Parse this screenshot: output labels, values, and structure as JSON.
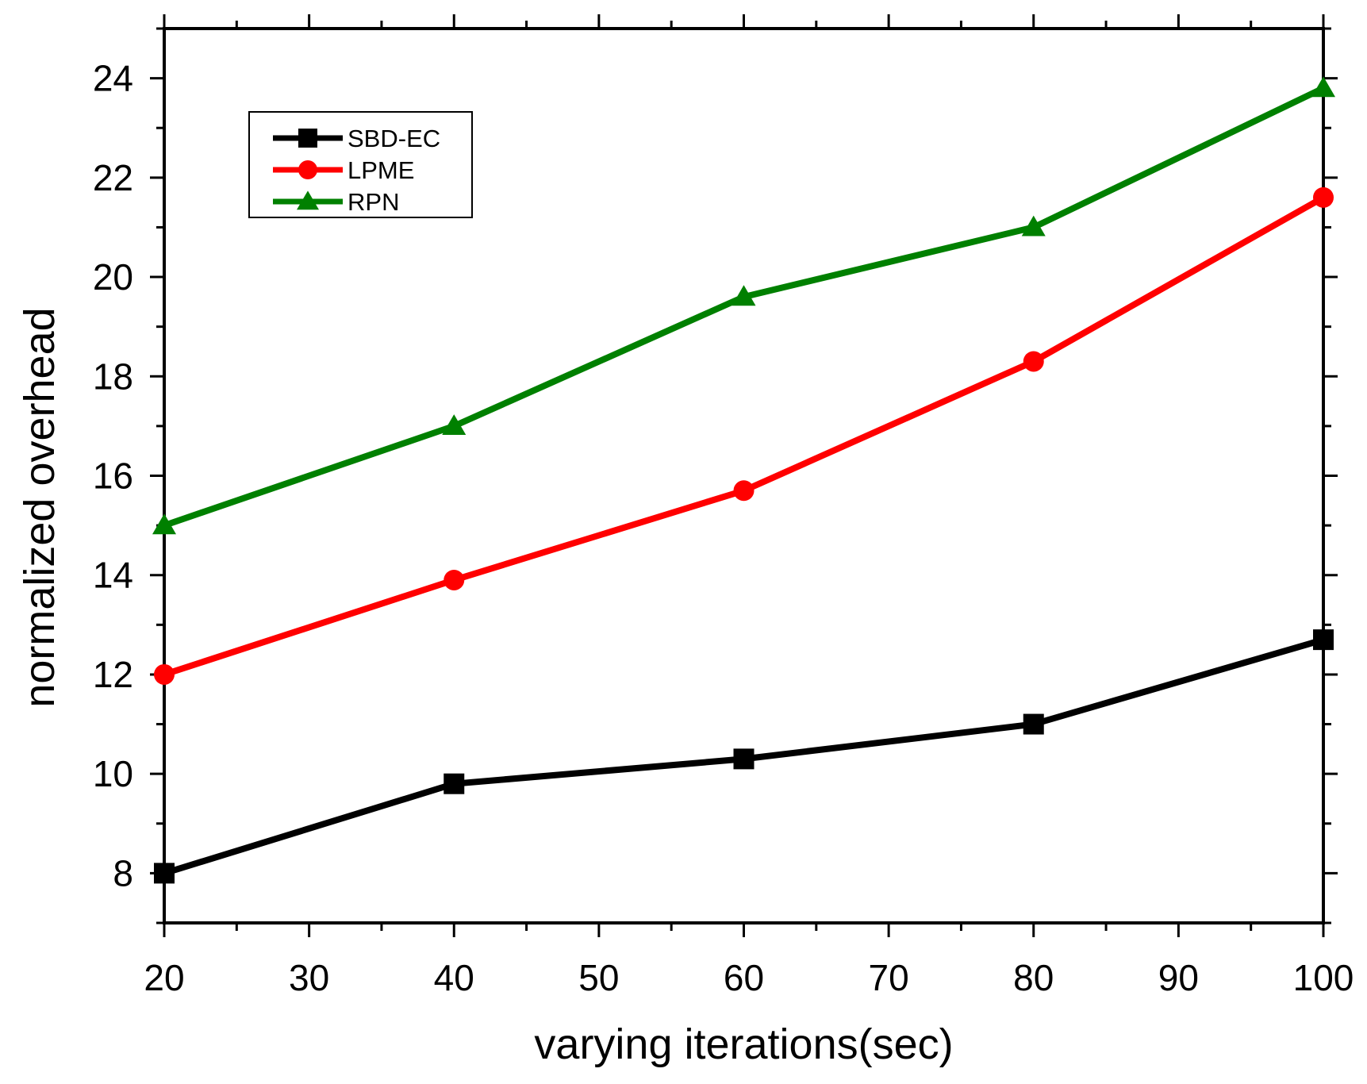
{
  "chart_data": {
    "type": "line",
    "title": "",
    "xlabel": "varying iterations(sec)",
    "ylabel": "normalized overhead",
    "xlim": [
      20,
      100
    ],
    "ylim": [
      7,
      25
    ],
    "x_ticks": [
      20,
      30,
      40,
      50,
      60,
      70,
      80,
      90,
      100
    ],
    "y_ticks": [
      8,
      10,
      12,
      14,
      16,
      18,
      20,
      22,
      24
    ],
    "grid": false,
    "legend_position": "top-left",
    "x": [
      20,
      40,
      60,
      80,
      100
    ],
    "series": [
      {
        "name": "SBD-EC",
        "color": "#000000",
        "marker": "square",
        "values": [
          8.0,
          9.8,
          10.3,
          11.0,
          12.7
        ]
      },
      {
        "name": "LPME",
        "color": "#ff0000",
        "marker": "circle",
        "values": [
          12.0,
          13.9,
          15.7,
          18.3,
          21.6
        ]
      },
      {
        "name": "RPN",
        "color": "#008000",
        "marker": "triangle",
        "values": [
          15.0,
          17.0,
          19.6,
          21.0,
          23.8
        ]
      }
    ]
  }
}
